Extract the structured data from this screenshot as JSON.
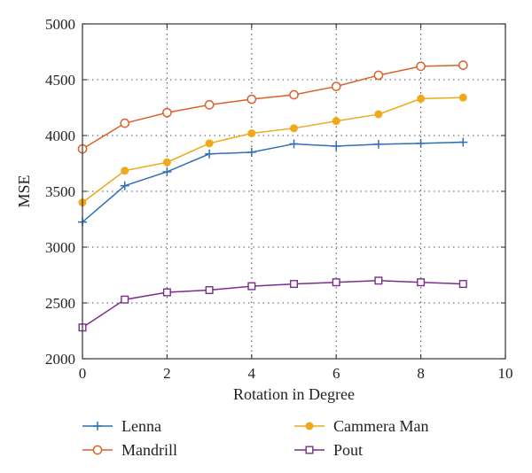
{
  "chart_data": {
    "type": "line",
    "xlabel": "Rotation in Degree",
    "ylabel": "MSE",
    "xlim": [
      0,
      10
    ],
    "ylim": [
      2000,
      5000
    ],
    "xticks": [
      0,
      2,
      4,
      6,
      8,
      10
    ],
    "yticks": [
      2000,
      2500,
      3000,
      3500,
      4000,
      4500,
      5000
    ],
    "grid": true,
    "legend_position": "bottom",
    "x": [
      0,
      1,
      2,
      3,
      4,
      5,
      6,
      7,
      8,
      9
    ],
    "series": [
      {
        "name": "Lenna",
        "color": "#2f6fb5",
        "marker": "plus",
        "values": [
          3225,
          3550,
          3675,
          3835,
          3850,
          3925,
          3905,
          3922,
          3930,
          3940
        ]
      },
      {
        "name": "Mandrill",
        "color": "#d9622b",
        "marker": "circle-open",
        "values": [
          3880,
          4110,
          4205,
          4275,
          4325,
          4365,
          4440,
          4540,
          4620,
          4630
        ]
      },
      {
        "name": "Cammera Man",
        "color": "#efa91a",
        "marker": "circle-filled",
        "values": [
          3400,
          3685,
          3760,
          3930,
          4020,
          4065,
          4130,
          4190,
          4330,
          4340
        ]
      },
      {
        "name": "Pout",
        "color": "#7b2d8e",
        "marker": "square-open",
        "values": [
          2280,
          2530,
          2595,
          2615,
          2650,
          2670,
          2685,
          2700,
          2685,
          2670
        ]
      }
    ]
  }
}
